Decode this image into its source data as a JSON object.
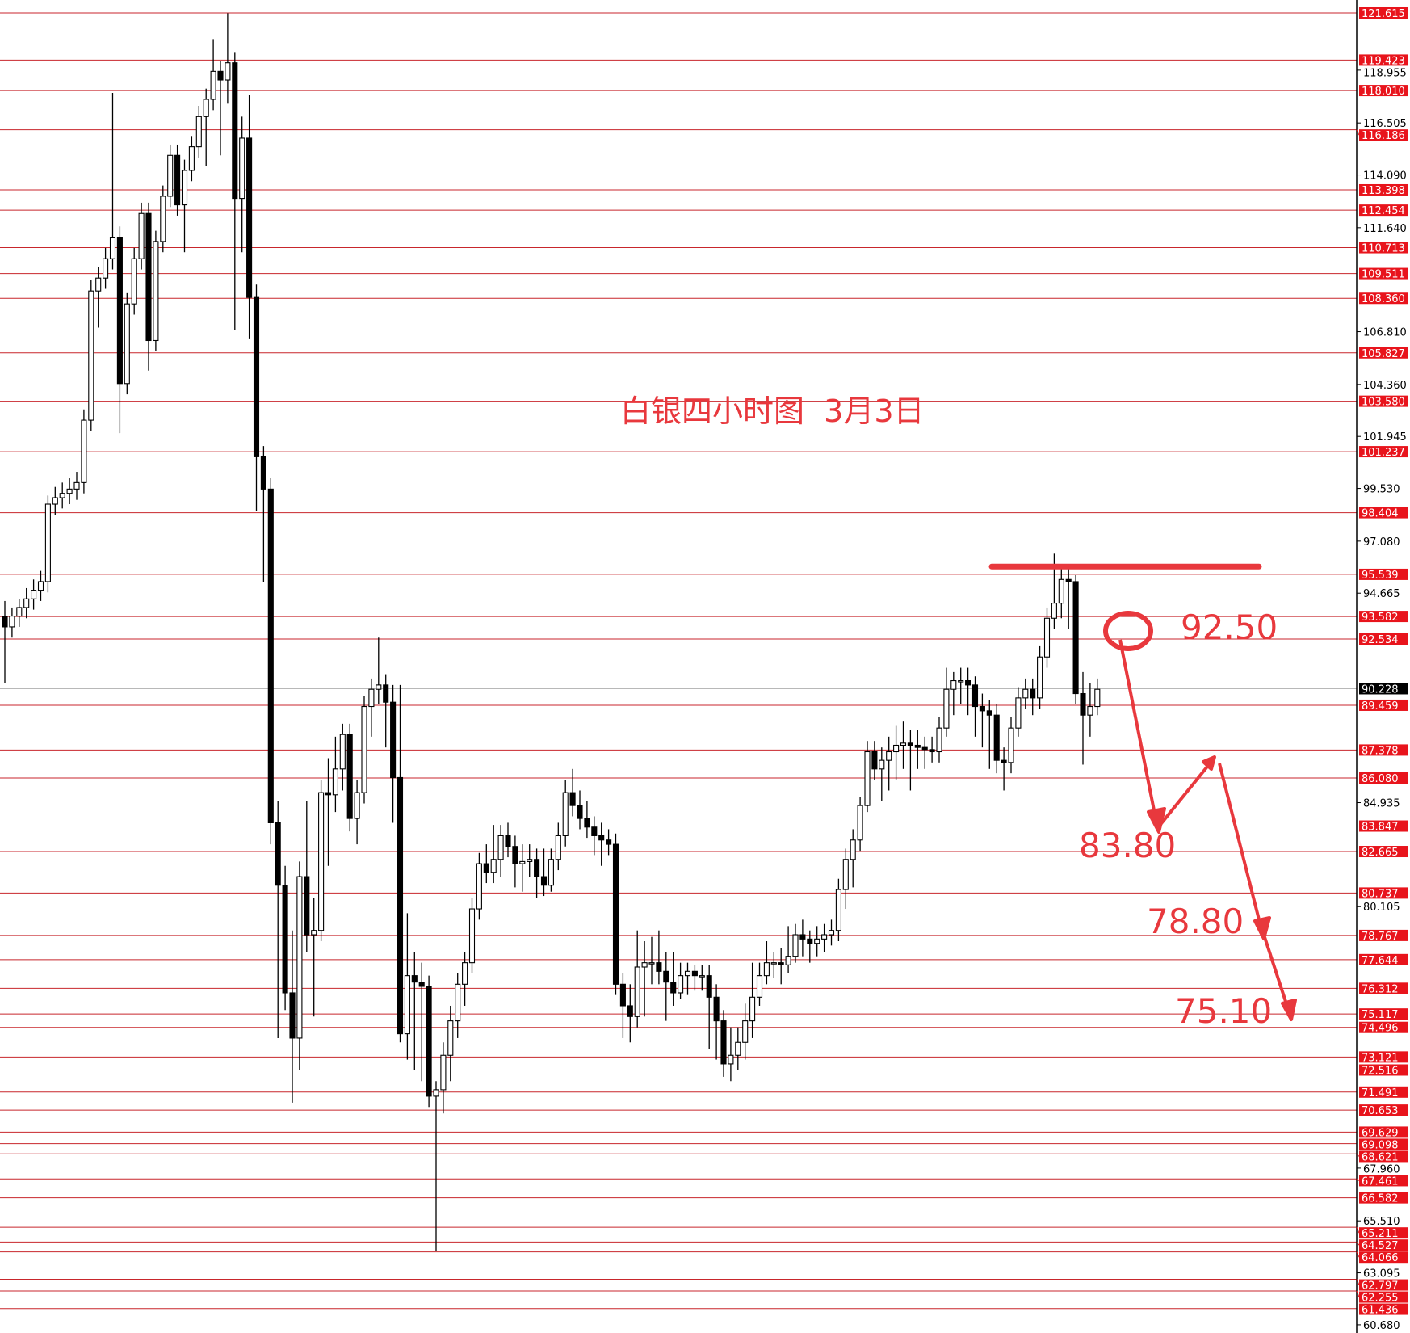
{
  "chart_data": {
    "type": "candlestick",
    "title": "白银四小时图  3月3日",
    "ylim": [
      60.3,
      122.2
    ],
    "grid": false,
    "colors": {
      "level_line": "#c8262c",
      "level_label_bg": "#e8141c",
      "annotation": "#e8383d",
      "bull_fill": "#ffffff",
      "bear_fill": "#000000",
      "current_price_bg": "#000000"
    },
    "current_price": "90.228",
    "axis_ticks": [
      "118.955",
      "116.505",
      "114.090",
      "111.640",
      "106.810",
      "104.360",
      "101.945",
      "99.530",
      "97.080",
      "94.665",
      "84.935",
      "80.105",
      "67.960",
      "65.510",
      "63.095",
      "60.680"
    ],
    "levels": [
      "121.615",
      "119.423",
      "118.010",
      "116.186",
      "113.398",
      "112.454",
      "110.713",
      "109.511",
      "108.360",
      "105.827",
      "103.580",
      "101.237",
      "98.404",
      "95.539",
      "93.582",
      "92.534",
      "89.459",
      "87.378",
      "86.080",
      "83.847",
      "82.665",
      "80.737",
      "78.767",
      "77.644",
      "76.312",
      "75.117",
      "74.496",
      "73.121",
      "72.516",
      "71.491",
      "70.653",
      "69.629",
      "69.098",
      "68.621",
      "67.461",
      "66.582",
      "65.211",
      "64.527",
      "64.066",
      "62.797",
      "62.255",
      "61.436"
    ],
    "resistance_line": 95.9,
    "targets": [
      "92.50",
      "83.80",
      "78.80",
      "75.10"
    ],
    "ohlc": [
      [
        93.6,
        94.3,
        90.5,
        93.1
      ],
      [
        93.1,
        94.0,
        92.6,
        93.6
      ],
      [
        93.6,
        94.4,
        93.1,
        94.0
      ],
      [
        94.0,
        94.9,
        93.5,
        94.4
      ],
      [
        94.4,
        95.3,
        93.9,
        94.8
      ],
      [
        94.8,
        95.7,
        94.3,
        95.2
      ],
      [
        95.2,
        99.2,
        94.7,
        98.8
      ],
      [
        98.8,
        99.6,
        98.3,
        99.1
      ],
      [
        99.1,
        99.8,
        98.6,
        99.3
      ],
      [
        99.3,
        100.0,
        98.8,
        99.5
      ],
      [
        99.5,
        100.3,
        99.0,
        99.8
      ],
      [
        99.8,
        103.2,
        99.3,
        102.7
      ],
      [
        102.7,
        109.2,
        102.2,
        108.7
      ],
      [
        108.7,
        109.8,
        107.0,
        109.3
      ],
      [
        109.3,
        110.7,
        108.8,
        110.2
      ],
      [
        110.2,
        117.9,
        109.7,
        111.2
      ],
      [
        111.2,
        111.7,
        102.1,
        104.4
      ],
      [
        104.4,
        108.6,
        103.9,
        108.1
      ],
      [
        108.1,
        110.7,
        107.6,
        110.2
      ],
      [
        110.2,
        112.8,
        109.7,
        112.3
      ],
      [
        112.3,
        112.8,
        105.0,
        106.4
      ],
      [
        106.4,
        111.5,
        105.9,
        111.0
      ],
      [
        111.0,
        113.6,
        110.5,
        113.1
      ],
      [
        113.1,
        115.5,
        112.6,
        115.0
      ],
      [
        115.0,
        115.5,
        112.2,
        112.7
      ],
      [
        112.7,
        114.8,
        110.5,
        114.3
      ],
      [
        114.3,
        115.9,
        113.8,
        115.4
      ],
      [
        115.4,
        117.3,
        114.9,
        116.8
      ],
      [
        116.8,
        118.1,
        114.5,
        117.6
      ],
      [
        117.6,
        120.4,
        117.1,
        118.9
      ],
      [
        118.9,
        119.4,
        115.0,
        118.5
      ],
      [
        118.5,
        121.6,
        117.4,
        119.3
      ],
      [
        119.3,
        119.8,
        106.9,
        113.0
      ],
      [
        113.0,
        116.8,
        110.5,
        115.8
      ],
      [
        115.8,
        117.8,
        106.5,
        108.4
      ],
      [
        108.4,
        109.0,
        98.5,
        101.0
      ],
      [
        101.0,
        101.5,
        95.2,
        99.5
      ],
      [
        99.5,
        100.0,
        83.0,
        84.0
      ],
      [
        84.0,
        85.0,
        74.0,
        81.1
      ],
      [
        81.1,
        82.0,
        75.3,
        76.1
      ],
      [
        76.1,
        79.0,
        71.0,
        74.0
      ],
      [
        74.0,
        82.2,
        72.5,
        81.5
      ],
      [
        81.5,
        85.0,
        78.0,
        78.8
      ],
      [
        78.8,
        80.5,
        75.0,
        79.0
      ],
      [
        79.0,
        86.0,
        78.5,
        85.4
      ],
      [
        85.4,
        87.0,
        82.0,
        85.3
      ],
      [
        85.3,
        88.0,
        84.5,
        86.5
      ],
      [
        86.5,
        88.6,
        85.5,
        88.1
      ],
      [
        88.1,
        88.6,
        83.6,
        84.2
      ],
      [
        84.2,
        86.0,
        83.0,
        85.4
      ],
      [
        85.4,
        89.9,
        84.9,
        89.4
      ],
      [
        89.4,
        90.7,
        88.0,
        90.2
      ],
      [
        90.2,
        92.6,
        89.5,
        90.4
      ],
      [
        90.4,
        90.9,
        87.5,
        89.6
      ],
      [
        89.6,
        90.4,
        84.0,
        86.1
      ],
      [
        86.1,
        90.4,
        73.8,
        74.2
      ],
      [
        74.2,
        79.8,
        73.0,
        76.9
      ],
      [
        76.9,
        78.0,
        72.5,
        76.6
      ],
      [
        76.6,
        77.5,
        72.0,
        76.4
      ],
      [
        76.4,
        76.9,
        70.8,
        71.3
      ],
      [
        71.3,
        72.0,
        64.1,
        71.6
      ],
      [
        71.6,
        73.8,
        70.5,
        73.2
      ],
      [
        73.2,
        75.5,
        72.0,
        74.8
      ],
      [
        74.8,
        77.0,
        74.0,
        76.5
      ],
      [
        76.5,
        78.0,
        75.5,
        77.5
      ],
      [
        77.5,
        80.5,
        77.0,
        80.0
      ],
      [
        80.0,
        82.6,
        79.5,
        82.1
      ],
      [
        82.1,
        83.0,
        81.2,
        81.7
      ],
      [
        81.7,
        83.9,
        81.2,
        82.3
      ],
      [
        82.3,
        83.9,
        81.5,
        83.4
      ],
      [
        83.4,
        84.0,
        82.4,
        82.9
      ],
      [
        82.9,
        83.4,
        81.0,
        82.1
      ],
      [
        82.1,
        83.0,
        80.8,
        82.2
      ],
      [
        82.2,
        83.0,
        81.5,
        82.3
      ],
      [
        82.3,
        82.8,
        80.5,
        81.5
      ],
      [
        81.5,
        82.8,
        80.6,
        81.1
      ],
      [
        81.1,
        82.8,
        80.8,
        82.3
      ],
      [
        82.3,
        84.0,
        81.8,
        83.4
      ],
      [
        83.4,
        86.0,
        82.9,
        85.4
      ],
      [
        85.4,
        86.5,
        84.3,
        84.8
      ],
      [
        84.8,
        85.5,
        83.7,
        84.2
      ],
      [
        84.2,
        85.0,
        83.3,
        83.8
      ],
      [
        83.8,
        84.3,
        82.5,
        83.4
      ],
      [
        83.4,
        84.0,
        82.0,
        83.2
      ],
      [
        83.2,
        83.7,
        82.5,
        83.0
      ],
      [
        83.0,
        83.5,
        76.0,
        76.5
      ],
      [
        76.5,
        77.0,
        74.0,
        75.5
      ],
      [
        75.5,
        76.5,
        73.8,
        75.0
      ],
      [
        75.0,
        79.0,
        74.5,
        77.3
      ],
      [
        77.3,
        78.5,
        75.0,
        77.5
      ],
      [
        77.5,
        78.7,
        76.5,
        77.5
      ],
      [
        77.5,
        79.0,
        76.5,
        77.1
      ],
      [
        77.1,
        78.0,
        74.8,
        76.6
      ],
      [
        76.6,
        78.0,
        75.5,
        76.1
      ],
      [
        76.1,
        77.5,
        75.8,
        76.9
      ],
      [
        76.9,
        77.5,
        76.0,
        77.1
      ],
      [
        77.1,
        77.4,
        76.2,
        76.9
      ],
      [
        76.9,
        77.4,
        76.2,
        76.9
      ],
      [
        76.9,
        77.4,
        73.5,
        75.9
      ],
      [
        75.9,
        76.5,
        73.0,
        74.8
      ],
      [
        74.8,
        75.3,
        72.2,
        72.8
      ],
      [
        72.8,
        74.5,
        72.0,
        73.2
      ],
      [
        73.2,
        74.5,
        72.5,
        73.8
      ],
      [
        73.8,
        75.6,
        73.0,
        74.8
      ],
      [
        74.8,
        77.5,
        74.0,
        75.9
      ],
      [
        75.9,
        77.5,
        75.5,
        76.9
      ],
      [
        76.9,
        78.5,
        76.5,
        77.5
      ],
      [
        77.5,
        78.0,
        76.8,
        77.5
      ],
      [
        77.5,
        78.2,
        76.5,
        77.4
      ],
      [
        77.4,
        79.2,
        77.0,
        77.8
      ],
      [
        77.8,
        79.3,
        77.5,
        78.8
      ],
      [
        78.8,
        79.5,
        77.8,
        78.6
      ],
      [
        78.6,
        79.0,
        77.5,
        78.4
      ],
      [
        78.4,
        79.2,
        77.8,
        78.6
      ],
      [
        78.6,
        79.3,
        78.0,
        78.8
      ],
      [
        78.8,
        79.5,
        78.3,
        79.0
      ],
      [
        79.0,
        81.4,
        78.5,
        80.9
      ],
      [
        80.9,
        82.8,
        80.0,
        82.3
      ],
      [
        82.3,
        83.7,
        81.0,
        83.2
      ],
      [
        83.2,
        85.2,
        82.7,
        84.8
      ],
      [
        84.8,
        87.8,
        84.5,
        87.3
      ],
      [
        87.3,
        87.8,
        86.0,
        86.5
      ],
      [
        86.5,
        87.5,
        85.0,
        86.9
      ],
      [
        86.9,
        88.0,
        85.5,
        87.3
      ],
      [
        87.3,
        88.5,
        86.0,
        87.6
      ],
      [
        87.6,
        88.7,
        86.5,
        87.7
      ],
      [
        87.7,
        88.3,
        85.5,
        87.6
      ],
      [
        87.6,
        88.3,
        86.5,
        87.5
      ],
      [
        87.5,
        88.0,
        86.5,
        87.4
      ],
      [
        87.4,
        88.0,
        86.8,
        87.3
      ],
      [
        87.3,
        88.9,
        86.8,
        88.4
      ],
      [
        88.4,
        91.2,
        88.0,
        90.2
      ],
      [
        90.2,
        91.0,
        89.0,
        90.6
      ],
      [
        90.6,
        91.2,
        89.5,
        90.6
      ],
      [
        90.6,
        91.2,
        89.0,
        90.4
      ],
      [
        90.4,
        90.8,
        88.0,
        89.4
      ],
      [
        89.4,
        90.0,
        87.5,
        89.2
      ],
      [
        89.2,
        89.7,
        86.5,
        89.0
      ],
      [
        89.0,
        89.5,
        86.3,
        86.9
      ],
      [
        86.9,
        87.5,
        85.5,
        86.8
      ],
      [
        86.8,
        88.9,
        86.3,
        88.4
      ],
      [
        88.4,
        90.3,
        88.0,
        89.8
      ],
      [
        89.8,
        90.7,
        89.3,
        90.2
      ],
      [
        90.2,
        90.7,
        89.0,
        89.8
      ],
      [
        89.8,
        92.2,
        89.3,
        91.7
      ],
      [
        91.7,
        94.0,
        91.2,
        93.5
      ],
      [
        93.5,
        96.5,
        93.0,
        94.2
      ],
      [
        94.2,
        95.8,
        93.5,
        95.3
      ],
      [
        95.3,
        95.9,
        93.0,
        95.2
      ],
      [
        95.2,
        95.5,
        89.5,
        90.0
      ],
      [
        90.0,
        91.0,
        86.7,
        89.0
      ],
      [
        89.0,
        90.5,
        88.0,
        89.4
      ],
      [
        89.4,
        90.7,
        89.0,
        90.2
      ]
    ]
  }
}
